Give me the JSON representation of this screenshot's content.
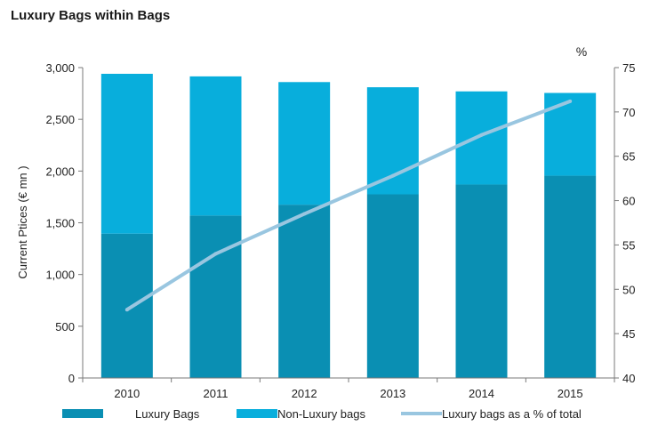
{
  "chart_data": {
    "type": "bar",
    "stacked": true,
    "title": "Luxury Bags within Bags",
    "ylabel": "Current Ptices  (€ mn )",
    "y2label": "%",
    "categories": [
      "2010",
      "2011",
      "2012",
      "2013",
      "2014",
      "2015"
    ],
    "ylim": [
      0,
      3000
    ],
    "yticks": [
      "0",
      "500",
      "1,000",
      "1,500",
      "2,000",
      "2,500",
      "3,000"
    ],
    "y2lim": [
      40,
      75
    ],
    "y2ticks": [
      "40",
      "45",
      "50",
      "55",
      "60",
      "65",
      "70",
      "75"
    ],
    "grid": false,
    "legend_position": "bottom",
    "series": [
      {
        "name": "Luxury Bags",
        "kind": "bar",
        "axis": "left",
        "color": "#0a8fb3",
        "values": [
          1395,
          1570,
          1675,
          1775,
          1870,
          1955
        ]
      },
      {
        "name": "Non-Luxury bags",
        "kind": "bar",
        "axis": "left",
        "color": "#08aedc",
        "values": [
          1545,
          1345,
          1185,
          1035,
          900,
          800
        ]
      },
      {
        "name": "Luxury bags as a % of total",
        "kind": "line",
        "axis": "right",
        "color": "#99c6e0",
        "values": [
          47.7,
          54.0,
          58.5,
          62.8,
          67.4,
          71.2
        ]
      }
    ]
  }
}
